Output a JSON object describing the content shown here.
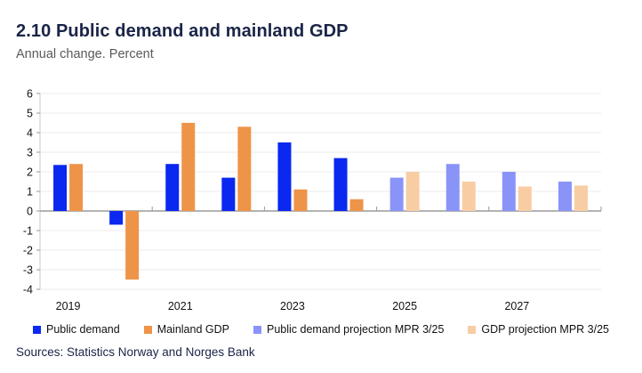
{
  "chart_data": {
    "type": "bar",
    "title": "2.10 Public demand and mainland GDP",
    "subtitle": "Annual change. Percent",
    "xlabel": "",
    "ylabel": "Percent",
    "ylim": [
      -4,
      6
    ],
    "ytick_step": 1,
    "grid": true,
    "legend_position": "bottom",
    "categories": [
      "2019",
      "2020",
      "2021",
      "2022",
      "2023",
      "2024",
      "2025",
      "2026",
      "2027",
      "2028"
    ],
    "xtick_labels": [
      "2019",
      "2021",
      "2023",
      "2025",
      "2027"
    ],
    "series": [
      {
        "name": "Public demand",
        "color": "#0a28f0",
        "values": [
          2.35,
          -0.7,
          2.4,
          1.7,
          3.5,
          2.7,
          null,
          null,
          null,
          null
        ]
      },
      {
        "name": "Mainland GDP",
        "color": "#ee9449",
        "values": [
          2.4,
          -3.5,
          4.5,
          4.3,
          1.1,
          0.6,
          null,
          null,
          null,
          null
        ]
      },
      {
        "name": "Public demand projection MPR 3/25",
        "color": "#8a94f8",
        "values": [
          null,
          null,
          null,
          null,
          null,
          null,
          1.7,
          2.4,
          2.0,
          1.5
        ]
      },
      {
        "name": "GDP projection MPR 3/25",
        "color": "#f8cda4",
        "values": [
          null,
          null,
          null,
          null,
          null,
          null,
          2.0,
          1.5,
          1.25,
          1.3
        ]
      }
    ]
  },
  "footer": {
    "sources": "Sources: Statistics Norway and Norges Bank"
  }
}
